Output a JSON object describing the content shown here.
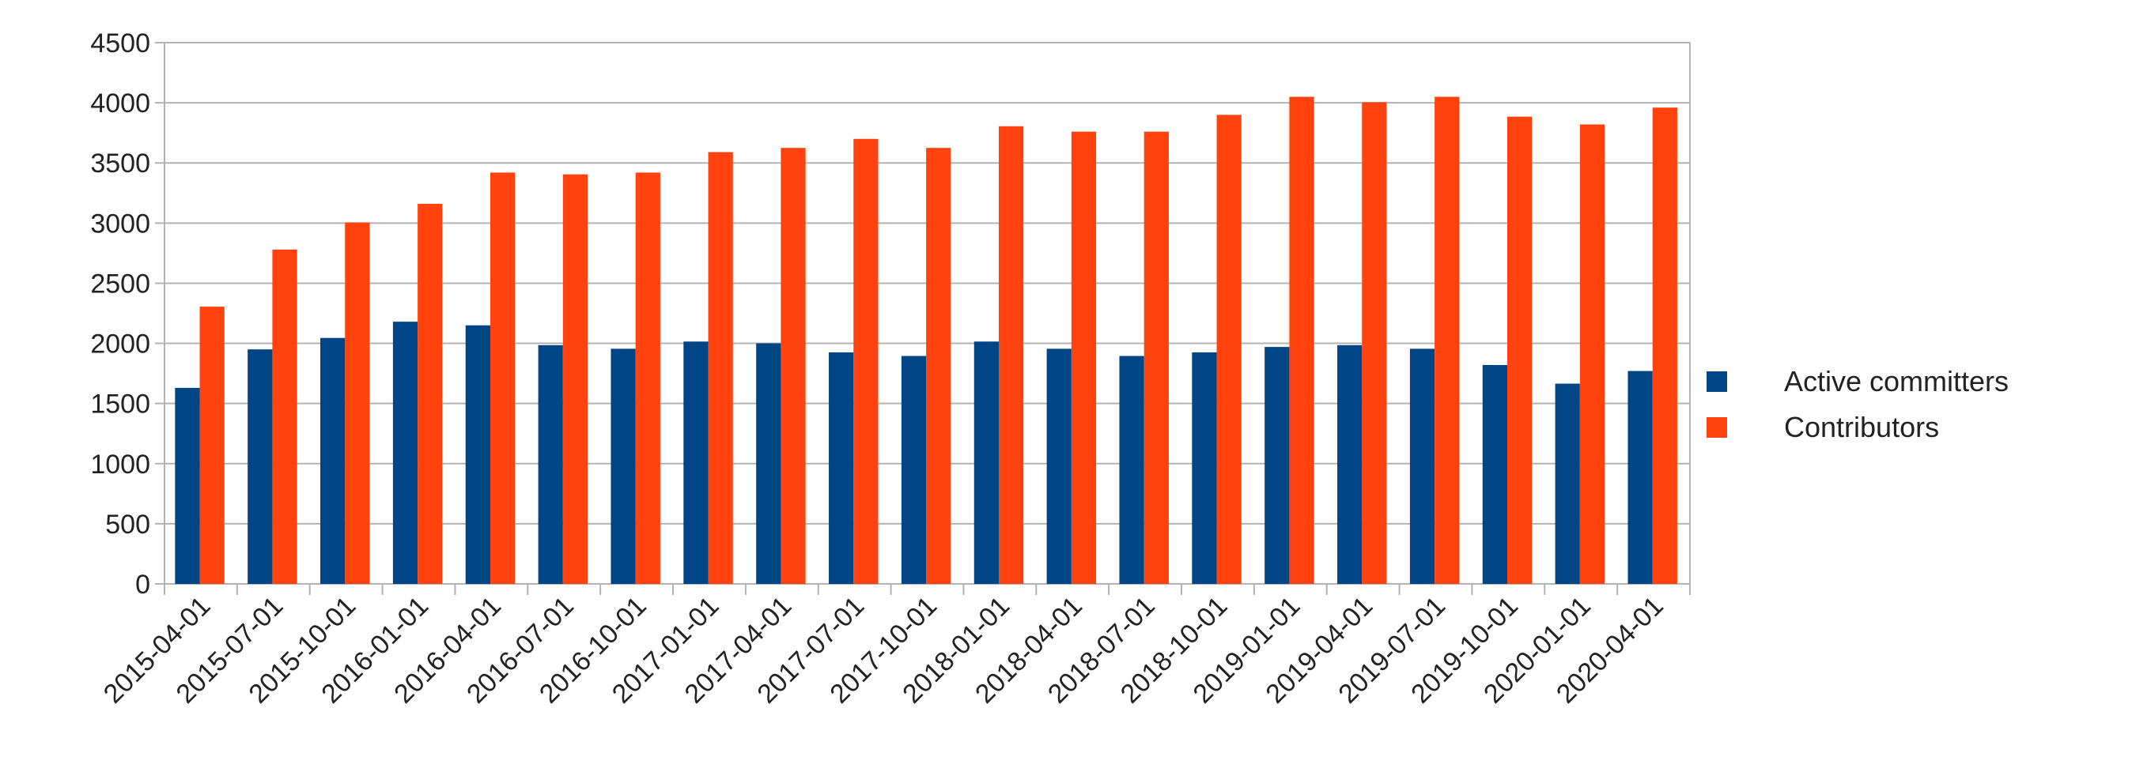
{
  "chart_data": {
    "type": "bar",
    "title": "",
    "xlabel": "",
    "ylabel": "",
    "ylim": [
      0,
      4500
    ],
    "yticks": [
      0,
      500,
      1000,
      1500,
      2000,
      2500,
      3000,
      3500,
      4000,
      4500
    ],
    "grid": true,
    "legend_position": "right",
    "categories": [
      "2015-04-01",
      "2015-07-01",
      "2015-10-01",
      "2016-01-01",
      "2016-04-01",
      "2016-07-01",
      "2016-10-01",
      "2017-01-01",
      "2017-04-01",
      "2017-07-01",
      "2017-10-01",
      "2018-01-01",
      "2018-04-01",
      "2018-07-01",
      "2018-10-01",
      "2019-01-01",
      "2019-04-01",
      "2019-07-01",
      "2019-10-01",
      "2020-01-01",
      "2020-04-01"
    ],
    "series": [
      {
        "name": "Active committers",
        "color": "#004586",
        "values": [
          1630,
          1950,
          2045,
          2180,
          2150,
          1985,
          1955,
          2015,
          2000,
          1925,
          1895,
          2015,
          1955,
          1895,
          1925,
          1970,
          1985,
          1955,
          1820,
          1665,
          1770
        ]
      },
      {
        "name": "Contributors",
        "color": "#ff420e",
        "values": [
          2305,
          2780,
          3005,
          3160,
          3420,
          3405,
          3420,
          3590,
          3625,
          3700,
          3625,
          3805,
          3760,
          3760,
          3900,
          4050,
          4005,
          4050,
          3885,
          3820,
          3960
        ]
      }
    ]
  }
}
